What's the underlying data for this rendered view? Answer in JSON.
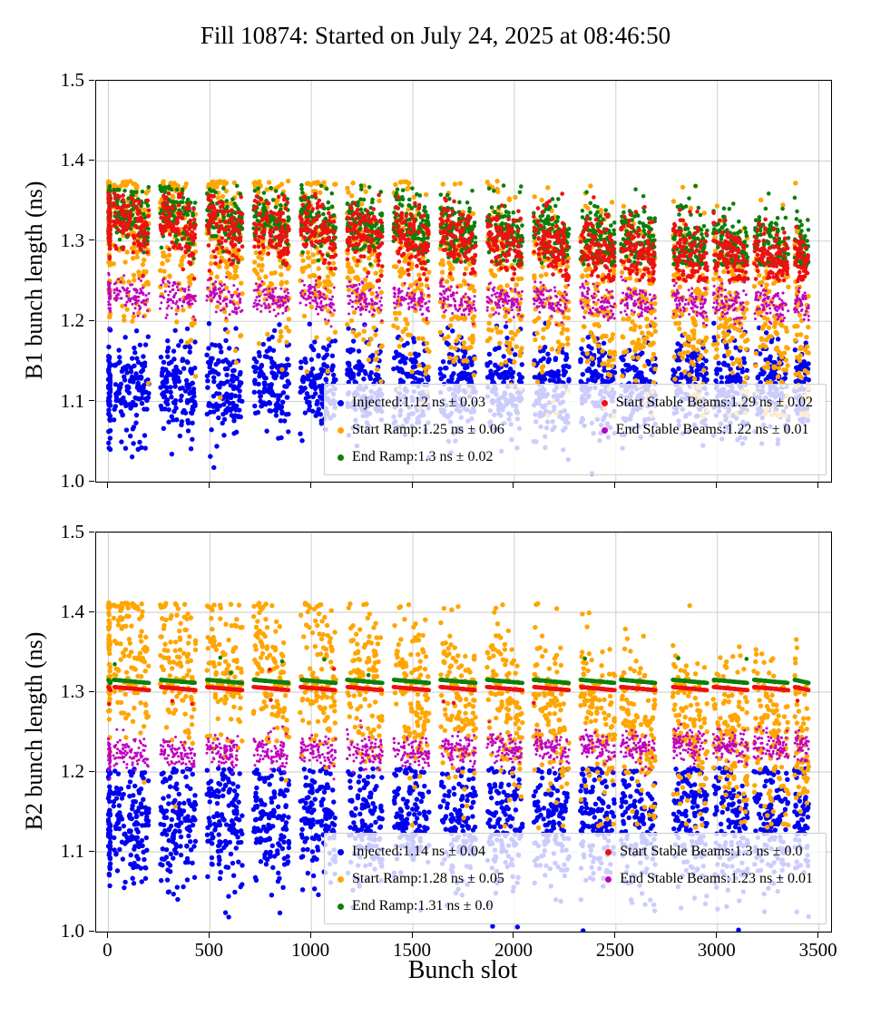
{
  "title": "Fill 10874: Started on July 24, 2025 at 08:46:50",
  "xlabel": "Bunch slot",
  "trains": [
    [
      0,
      10,
      0.45
    ],
    [
      25,
      200,
      1
    ],
    [
      255,
      430,
      1
    ],
    [
      485,
      660,
      1
    ],
    [
      715,
      890,
      1
    ],
    [
      945,
      1120,
      1
    ],
    [
      1175,
      1350,
      1
    ],
    [
      1405,
      1580,
      1
    ],
    [
      1635,
      1810,
      1
    ],
    [
      1865,
      2040,
      1
    ],
    [
      2095,
      2270,
      1
    ],
    [
      2325,
      2495,
      1
    ],
    [
      2525,
      2695,
      1
    ],
    [
      2780,
      2950,
      1
    ],
    [
      2980,
      3150,
      1
    ],
    [
      3180,
      3350,
      1
    ],
    [
      3380,
      3450,
      0.5
    ]
  ],
  "chart_data": [
    {
      "type": "scatter",
      "ylabel": "B1 bunch length (ns)",
      "xlim": [
        -60,
        3560
      ],
      "ylim": [
        1.0,
        1.5
      ],
      "xticks": [
        0,
        500,
        1000,
        1500,
        2000,
        2500,
        3000,
        3500
      ],
      "yticks": [
        1.0,
        1.1,
        1.2,
        1.3,
        1.4,
        1.5
      ],
      "x_max_slot": 3450,
      "grid": true,
      "legend_position": "lower right",
      "series": [
        {
          "name": "Injected",
          "label": "Injected:1.12 ns ± 0.03",
          "mean": 1.12,
          "std": 0.03,
          "color": "#0000f0",
          "size": 2.7,
          "per_train": 130,
          "mean_start": 1.118,
          "mean_end": 1.118,
          "saw": 0.004,
          "clip": [
            1.0,
            1.198
          ]
        },
        {
          "name": "Start Ramp",
          "label": "Start Ramp:1.25 ns ± 0.06",
          "mean": 1.25,
          "std": 0.06,
          "color": "#ffa500",
          "size": 2.7,
          "per_train": 115,
          "mean_start": 1.315,
          "mean_end": 1.19,
          "saw": 0.024,
          "clip": [
            1.08,
            1.375
          ]
        },
        {
          "name": "End Ramp",
          "label": "End Ramp:1.3 ns ± 0.02",
          "mean": 1.3,
          "std": 0.02,
          "color": "#0b800b",
          "size": 2.3,
          "per_train": 108,
          "mean_start": 1.337,
          "mean_end": 1.291,
          "saw": 0.009,
          "clip": [
            1.27,
            1.37
          ]
        },
        {
          "name": "Start Stable Beams",
          "label": "Start Stable Beams:1.29 ns ± 0.02",
          "mean": 1.29,
          "std": 0.02,
          "color": "#ee1111",
          "size": 2.3,
          "per_train": 108,
          "mean_start": 1.324,
          "mean_end": 1.277,
          "saw": 0.009,
          "clip": [
            1.25,
            1.36
          ]
        },
        {
          "name": "End Stable Beams",
          "label": "End Stable Beams:1.22 ns ± 0.01",
          "mean": 1.22,
          "std": 0.01,
          "color": "#c000c0",
          "size": 1.5,
          "per_train": 85,
          "mean_start": 1.231,
          "mean_end": 1.221,
          "saw": 0.006,
          "clip": [
            1.19,
            1.26
          ]
        }
      ]
    },
    {
      "type": "scatter",
      "ylabel": "B2 bunch length (ns)",
      "xlim": [
        -60,
        3560
      ],
      "ylim": [
        1.0,
        1.5
      ],
      "xticks": [
        0,
        500,
        1000,
        1500,
        2000,
        2500,
        3000,
        3500
      ],
      "yticks": [
        1.0,
        1.1,
        1.2,
        1.3,
        1.4,
        1.5
      ],
      "x_max_slot": 3450,
      "grid": true,
      "legend_position": "lower right",
      "series": [
        {
          "name": "Injected",
          "label": "Injected:1.14 ns ± 0.04",
          "mean": 1.14,
          "std": 0.04,
          "color": "#0000f0",
          "size": 2.7,
          "per_train": 135,
          "mean_start": 1.135,
          "mean_end": 1.135,
          "saw": 0.004,
          "clip": [
            1.0,
            1.205
          ]
        },
        {
          "name": "Start Ramp",
          "label": "Start Ramp:1.28 ns ± 0.05",
          "mean": 1.28,
          "std": 0.05,
          "color": "#ffa500",
          "size": 2.7,
          "per_train": 115,
          "mean_start": 1.352,
          "mean_end": 1.238,
          "saw": 0.02,
          "clip": [
            1.13,
            1.412
          ]
        },
        {
          "name": "End Ramp",
          "label": "End Ramp:1.31 ns ± 0.0",
          "mean": 1.31,
          "std": 0.0,
          "color": "#0b800b",
          "size": 2.3,
          "per_train": 110,
          "mean_start": 1.3135,
          "mean_end": 1.3135,
          "saw": 0.002,
          "clip": [
            1.295,
            1.345
          ]
        },
        {
          "name": "Start Stable Beams",
          "label": "Start Stable Beams:1.3 ns ± 0.0",
          "mean": 1.3,
          "std": 0.0,
          "color": "#ee1111",
          "size": 2.3,
          "per_train": 110,
          "mean_start": 1.3045,
          "mean_end": 1.3045,
          "saw": 0.002,
          "clip": [
            1.285,
            1.33
          ]
        },
        {
          "name": "End Stable Beams",
          "label": "End Stable Beams:1.23 ns ± 0.01",
          "mean": 1.23,
          "std": 0.01,
          "color": "#c000c0",
          "size": 1.5,
          "per_train": 85,
          "mean_start": 1.222,
          "mean_end": 1.233,
          "saw": 0.005,
          "clip": [
            1.19,
            1.27
          ]
        }
      ]
    }
  ]
}
